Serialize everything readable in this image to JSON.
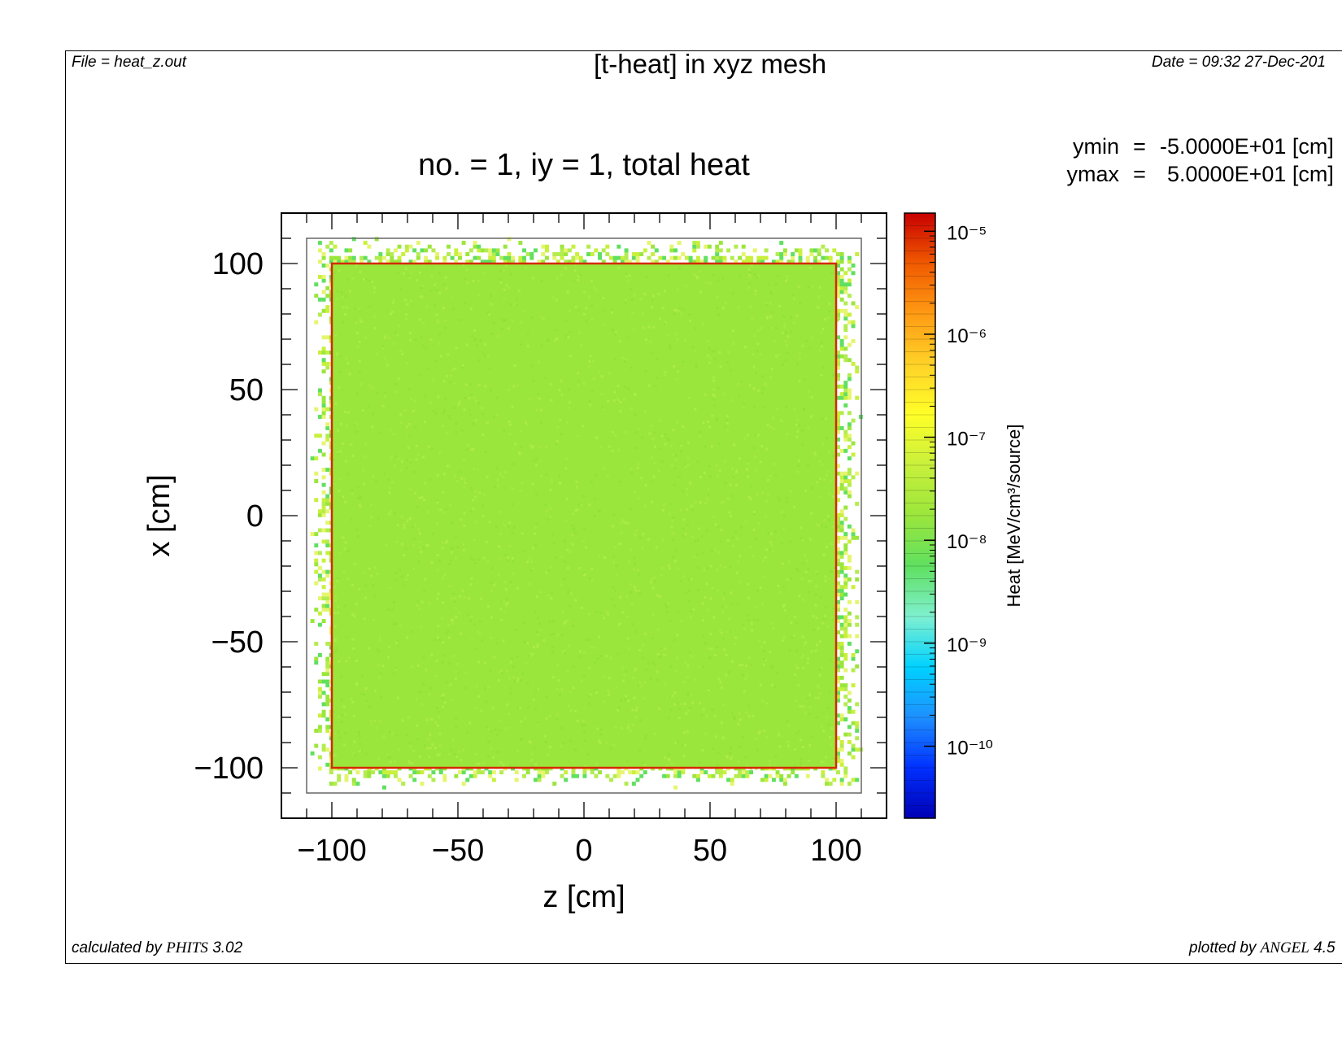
{
  "header": {
    "file": "File = heat_z.out",
    "title": "[t-heat] in xyz mesh",
    "date": "Date = 09:32 27-Dec-201"
  },
  "y_range": {
    "ymin_name": "ymin",
    "ymin_value": "-5.0000E+01 [cm]",
    "ymax_name": "ymax",
    "ymax_value": "5.0000E+01 [cm]",
    "eq": "="
  },
  "footer": {
    "calculated_prefix": "calculated by ",
    "calculated_code": "PHITS",
    "calculated_version": " 3.02",
    "plotted_prefix": "plotted by ",
    "plotted_code": "ANGEL",
    "plotted_version": " 4.5"
  },
  "chart_data": {
    "type": "heatmap",
    "title": "no. =  1,  iy =  1,  total heat",
    "xlabel": "z [cm]",
    "ylabel": "x [cm]",
    "xlim": [
      -120,
      120
    ],
    "ylim": [
      -120,
      120
    ],
    "x_ticks": [
      -100,
      -50,
      0,
      50,
      100
    ],
    "x_tick_labels": [
      "−100",
      "−50",
      "0",
      "50",
      "100"
    ],
    "y_ticks": [
      -100,
      -50,
      0,
      50,
      100
    ],
    "y_tick_labels": [
      "−100",
      "−50",
      "0",
      "50",
      "100"
    ],
    "mesh_extent": {
      "x": [
        -110,
        110
      ],
      "y": [
        -110,
        110
      ]
    },
    "uniform_region": {
      "x": [
        -100,
        100
      ],
      "y": [
        -100,
        100
      ],
      "value": 3e-08,
      "color": "#9be63c"
    },
    "boundary_edge": {
      "value": 1e-05,
      "color": "#d42a00"
    },
    "outer_band": {
      "x": [
        -110,
        110
      ],
      "y": [
        -110,
        110
      ],
      "value_range": [
        1e-08,
        1e-07
      ],
      "note": "sparse scattered cells"
    },
    "colorbar": {
      "label": "Heat [MeV/cm³/source]",
      "scale": "log",
      "range": [
        2e-11,
        1.5e-05
      ],
      "ticks": [
        1e-10,
        1e-09,
        1e-08,
        1e-07,
        1e-06,
        1e-05
      ],
      "tick_labels": [
        "10⁻¹⁰",
        "10⁻⁹",
        "10⁻⁸",
        "10⁻⁷",
        "10⁻⁶",
        "10⁻⁵"
      ],
      "colors": [
        "#0000b4",
        "#0030ff",
        "#1e90ff",
        "#00d2ff",
        "#7ff0d0",
        "#60e060",
        "#9be63c",
        "#c8f03c",
        "#ffff28",
        "#ffd228",
        "#ff9b14",
        "#f05a00",
        "#c80000"
      ]
    }
  }
}
